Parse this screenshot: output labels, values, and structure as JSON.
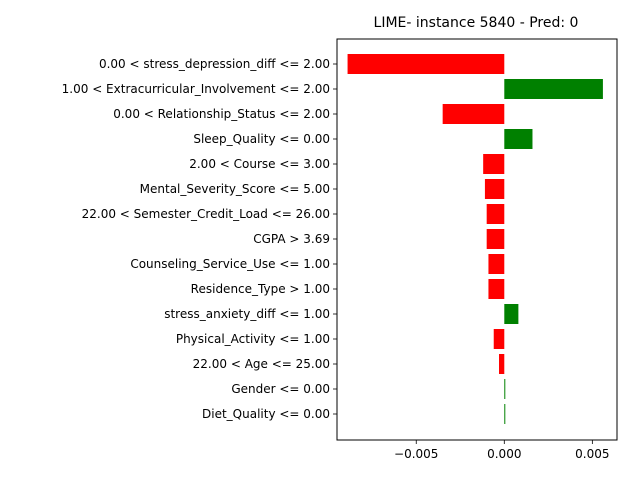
{
  "chart_data": {
    "type": "bar",
    "orientation": "horizontal",
    "title": "LIME- instance 5840 - Pred: 0",
    "xlabel": "",
    "ylabel": "",
    "categories": [
      "0.00 < stress_depression_diff <= 2.00",
      "1.00 < Extracurricular_Involvement <= 2.00",
      "0.00 < Relationship_Status <= 2.00",
      "Sleep_Quality <= 0.00",
      "2.00 < Course <= 3.00",
      "Mental_Severity_Score <= 5.00",
      "22.00 < Semester_Credit_Load <= 26.00",
      "CGPA > 3.69",
      "Counseling_Service_Use <= 1.00",
      "Residence_Type > 1.00",
      "stress_anxiety_diff <= 1.00",
      "Physical_Activity <= 1.00",
      "22.00 < Age <= 25.00",
      "Gender <= 0.00",
      "Diet_Quality <= 0.00"
    ],
    "values": [
      -0.0089,
      0.0056,
      -0.0035,
      0.0016,
      -0.0012,
      -0.0011,
      -0.001,
      -0.001,
      -0.0009,
      -0.0009,
      0.0008,
      -0.0006,
      -0.0003,
      5e-05,
      5e-05
    ],
    "xlim": [
      -0.0095,
      0.0064
    ],
    "xticks": [
      -0.005,
      0.0,
      0.005
    ],
    "xtick_labels": [
      "−0.005",
      "0.000",
      "0.005"
    ],
    "grid": false,
    "colors": {
      "positive": "#008000",
      "negative": "#ff0000"
    }
  }
}
